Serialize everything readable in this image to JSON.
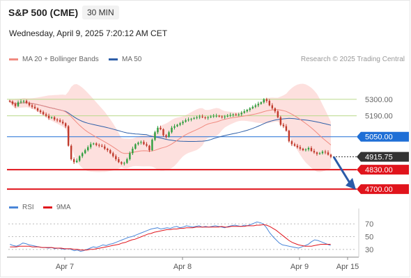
{
  "header": {
    "title": "S&P 500 (CME)",
    "timeframe": "30 MIN",
    "datetime": "Wednesday, April 9, 2025 7:20:12 AM CET"
  },
  "legend": {
    "ma20": "MA 20 + Bollinger Bands",
    "ma50": "MA 50",
    "credit": "Research © 2025 Trading Central",
    "rsi": "RSI",
    "ma9": "9MA"
  },
  "colors": {
    "ma20": "#f08a80",
    "ma50": "#2e5fa8",
    "band": "#fde0de",
    "resistance": "#b9d98a",
    "pivot": "#1f6fd6",
    "support": "#e0141c",
    "last": "#333333",
    "up": "#2e9e3e",
    "down": "#c0392b",
    "arrow": "#2a5ba8",
    "rsi": "#4a86d8",
    "rsi_ma": "#e0141c"
  },
  "chart_data": [
    {
      "type": "candlestick",
      "ylim": [
        4640,
        5360
      ],
      "x_ticks": [
        "Apr 7",
        "Apr 8",
        "Apr 9",
        "Apr 15"
      ],
      "levels": [
        {
          "label": "5300.00",
          "value": 5300,
          "kind": "resistance"
        },
        {
          "label": "5190.00",
          "value": 5190,
          "kind": "resistance"
        },
        {
          "label": "5050.00",
          "value": 5050,
          "kind": "pivot"
        },
        {
          "label": "4915.75",
          "value": 4915.75,
          "kind": "last"
        },
        {
          "label": "4830.00",
          "value": 4830,
          "kind": "support"
        },
        {
          "label": "4700.00",
          "value": 4700,
          "kind": "support"
        }
      ],
      "close": [
        5285,
        5270,
        5255,
        5280,
        5285,
        5290,
        5275,
        5260,
        5250,
        5240,
        5225,
        5215,
        5200,
        5190,
        5175,
        5180,
        5165,
        5160,
        5150,
        5140,
        5120,
        4990,
        4900,
        4880,
        4890,
        4920,
        4940,
        4960,
        4980,
        5000,
        5005,
        4995,
        4990,
        4985,
        4970,
        4960,
        4940,
        4920,
        4900,
        4880,
        4870,
        4875,
        4900,
        4940,
        4970,
        5000,
        5010,
        5015,
        5000,
        4990,
        4960,
        5030,
        5080,
        5110,
        5100,
        5060,
        5050,
        5080,
        5110,
        5120,
        5130,
        5140,
        5150,
        5160,
        5165,
        5170,
        5175,
        5180,
        5185,
        5180,
        5175,
        5180,
        5185,
        5190,
        5190,
        5185,
        5180,
        5185,
        5190,
        5195,
        5200,
        5195,
        5200,
        5210,
        5220,
        5230,
        5240,
        5250,
        5260,
        5270,
        5280,
        5300,
        5290,
        5260,
        5240,
        5220,
        5180,
        5130,
        5120,
        5090,
        5020,
        5000,
        4990,
        4980,
        4970,
        4960,
        4965,
        4975,
        4955,
        4945,
        4935,
        4940,
        4950,
        4945,
        4930,
        4915.75
      ]
    },
    {
      "type": "line",
      "title": "RSI",
      "levels": [
        70,
        50,
        30
      ],
      "rsi": [
        38,
        36,
        35,
        37,
        40,
        39,
        37,
        36,
        35,
        34,
        33,
        33,
        32,
        33,
        31,
        32,
        31,
        30,
        31,
        30,
        28,
        29,
        27,
        28,
        30,
        32,
        34,
        33,
        35,
        37,
        36,
        38,
        39,
        41,
        43,
        45,
        47,
        49,
        50,
        52,
        54,
        56,
        58,
        60,
        62,
        63,
        64,
        62,
        63,
        64,
        63,
        65,
        66,
        64,
        65,
        67,
        66,
        65,
        66,
        67,
        65,
        66,
        65,
        66,
        67,
        66,
        65,
        64,
        66,
        67,
        68,
        67,
        66,
        68,
        67,
        69,
        71,
        73,
        72,
        70,
        64,
        56,
        50,
        45,
        40,
        37,
        36,
        35,
        34,
        33,
        32,
        34,
        36,
        38,
        42,
        45,
        44,
        42,
        40,
        38,
        36
      ],
      "rsi_ma": [
        34,
        34,
        34,
        35,
        35,
        35,
        35,
        34,
        34,
        34,
        33,
        33,
        33,
        33,
        32,
        32,
        32,
        31,
        31,
        31,
        30,
        30,
        29,
        29,
        29,
        30,
        30,
        31,
        32,
        33,
        34,
        35,
        36,
        37,
        38,
        40,
        41,
        43,
        45,
        46,
        48,
        50,
        52,
        54,
        55,
        57,
        58,
        59,
        60,
        61,
        61,
        62,
        62,
        63,
        63,
        64,
        64,
        64,
        65,
        65,
        65,
        65,
        65,
        65,
        65,
        65,
        66,
        65,
        65,
        66,
        66,
        66,
        66,
        66,
        67,
        67,
        67,
        68,
        68,
        69,
        68,
        66,
        63,
        60,
        56,
        52,
        48,
        44,
        41,
        39,
        37,
        36,
        35,
        35,
        35,
        36,
        37,
        38,
        38,
        38,
        38
      ]
    }
  ]
}
